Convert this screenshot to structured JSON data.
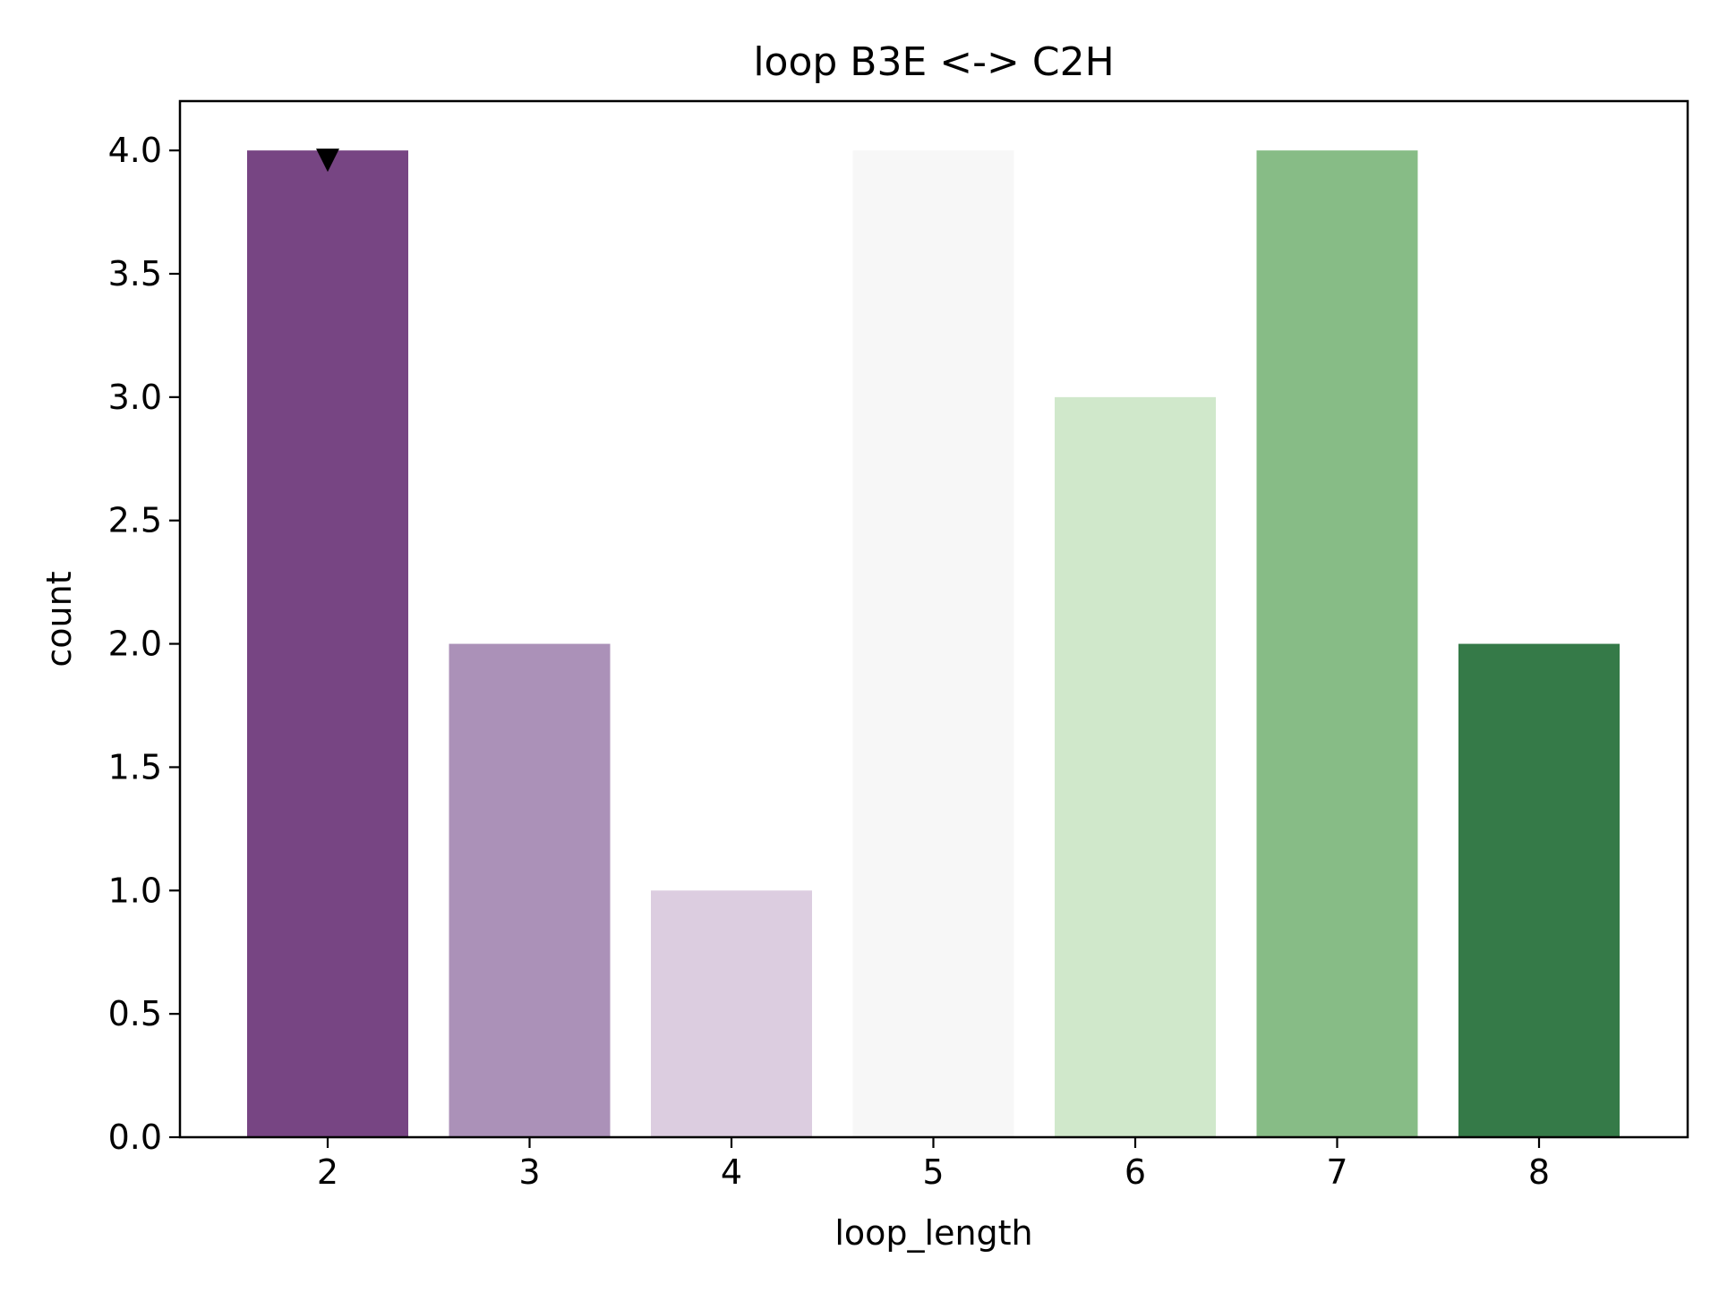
{
  "chart_data": {
    "type": "bar",
    "title": "loop B3E <-> C2H",
    "xlabel": "loop_length",
    "ylabel": "count",
    "categories": [
      "2",
      "3",
      "4",
      "5",
      "6",
      "7",
      "8"
    ],
    "values": [
      4,
      2,
      1,
      4,
      3,
      4,
      2
    ],
    "colors": [
      "#774583",
      "#ab91b8",
      "#dccde0",
      "#f7f7f7",
      "#d0e8cb",
      "#87bc86",
      "#357a48"
    ],
    "ylim": [
      0,
      4.2
    ],
    "yticks": [
      0.0,
      0.5,
      1.0,
      1.5,
      2.0,
      2.5,
      3.0,
      3.5,
      4.0
    ],
    "ytick_labels": [
      "0.0",
      "0.5",
      "1.0",
      "1.5",
      "2.0",
      "2.5",
      "3.0",
      "3.5",
      "4.0"
    ],
    "marker": {
      "category": "2",
      "value": 4,
      "shape": "triangle-down",
      "color": "#000000"
    },
    "grid": false,
    "legend": "none"
  }
}
